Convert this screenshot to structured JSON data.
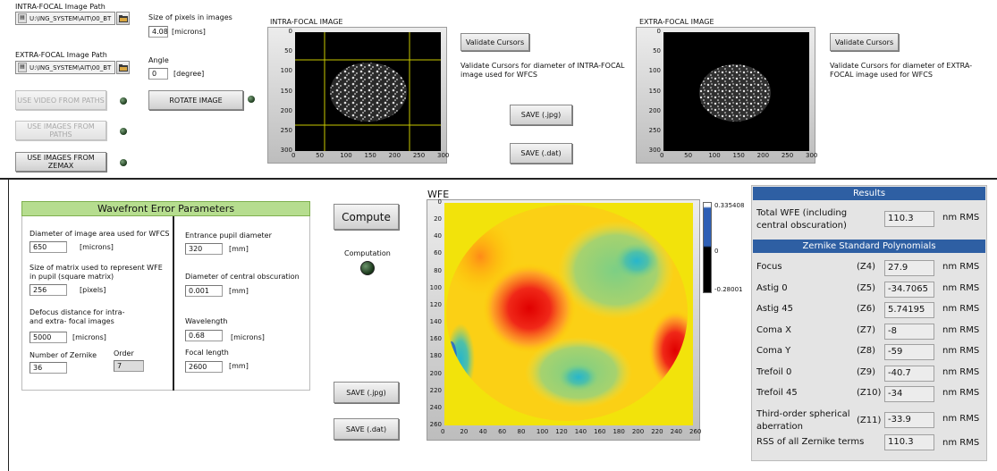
{
  "top": {
    "intra_path_label": "INTRA-FOCAL Image Path",
    "intra_path_value": "U:\\ING_SYSTEM\\AIT\\00_BT",
    "extra_path_label": "EXTRA-FOCAL Image Path",
    "extra_path_value": "U:\\ING_SYSTEM\\AIT\\00_BT",
    "pixel_size_label": "Size of pixels in images",
    "pixel_size_value": "4.08",
    "pixel_size_unit": "[microns]",
    "angle_label": "Angle",
    "angle_value": "0",
    "angle_unit": "[degree]",
    "use_video_label": "USE VIDEO FROM PATHS",
    "use_images_paths_label": "USE IMAGES FROM PATHS",
    "use_images_zemax_label": "USE IMAGES FROM ZEMAX",
    "rotate_label": "ROTATE IMAGE",
    "intra_title": "INTRA-FOCAL IMAGE",
    "extra_title": "EXTRA-FOCAL IMAGE",
    "validate_label": "Validate Cursors",
    "validate_intra_text": "Validate Cursors for diameter of INTRA-FOCAL image used for WFCS",
    "validate_extra_text": "Validate Cursors for diameter of EXTRA-FOCAL image used for WFCS",
    "save_jpg": "SAVE (.jpg)",
    "save_dat": "SAVE (.dat)",
    "x_ticks": [
      "0",
      "50",
      "100",
      "150",
      "200",
      "250",
      "300"
    ],
    "y_ticks": [
      "0",
      "50",
      "100",
      "150",
      "200",
      "250",
      "300"
    ]
  },
  "params": {
    "title": "Wavefront Error Parameters",
    "diam_label": "Diameter of image area used for WFCS",
    "diam_value": "650",
    "diam_unit": "[microns]",
    "matrix_label_1": "Size of matrix used to represent WFE",
    "matrix_label_2": "in pupil (square matrix)",
    "matrix_value": "256",
    "matrix_unit": "[pixels]",
    "defocus_label_1": "Defocus distance for intra-",
    "defocus_label_2": "and extra- focal images",
    "defocus_value": "5000",
    "defocus_unit": "[microns]",
    "nzernike_label": "Number of Zernike",
    "nzernike_value": "36",
    "order_label": "Order",
    "order_value": "7",
    "pupil_label": "Entrance pupil diameter",
    "pupil_value": "320",
    "pupil_unit": "[mm]",
    "obsc_label": "Diameter of central obscuration",
    "obsc_value": "0.001",
    "obsc_unit": "[mm]",
    "wave_label": "Wavelength",
    "wave_value": "0.68",
    "wave_unit": "[microns]",
    "focal_label": "Focal length",
    "focal_value": "2600",
    "focal_unit": "[mm]"
  },
  "compute": {
    "label": "Compute",
    "computation_label": "Computation",
    "save_jpg": "SAVE (.jpg)",
    "save_dat": "SAVE (.dat)"
  },
  "wfe": {
    "title": "WFE",
    "x_ticks": [
      "0",
      "20",
      "40",
      "60",
      "80",
      "100",
      "120",
      "140",
      "160",
      "180",
      "200",
      "220",
      "240",
      "260"
    ],
    "y_ticks": [
      "0",
      "20",
      "40",
      "60",
      "80",
      "100",
      "120",
      "140",
      "160",
      "180",
      "200",
      "220",
      "240",
      "260"
    ],
    "scale_max": "0.335408",
    "scale_mid": "0",
    "scale_min": "-0.28001"
  },
  "results": {
    "title": "Results",
    "total_label_1": "Total WFE (including",
    "total_label_2": "central obscuration)",
    "total_value": "110.3",
    "unit": "nm RMS",
    "zernike_title": "Zernike Standard Polynomials",
    "rows": [
      {
        "name": "Focus",
        "code": "(Z4)",
        "value": "27.9"
      },
      {
        "name": "Astig 0",
        "code": "(Z5)",
        "value": "-34.7065"
      },
      {
        "name": "Astig 45",
        "code": "(Z6)",
        "value": "5.74195"
      },
      {
        "name": "Coma X",
        "code": "(Z7)",
        "value": "-8"
      },
      {
        "name": "Coma Y",
        "code": "(Z8)",
        "value": "-59"
      },
      {
        "name": "Trefoil 0",
        "code": "(Z9)",
        "value": "-40.7"
      },
      {
        "name": "Trefoil 45",
        "code": "(Z10)",
        "value": "-34"
      }
    ],
    "spherical_label_1": "Third-order spherical",
    "spherical_label_2": "aberration",
    "spherical_code": "(Z11)",
    "spherical_value": "-33.9",
    "rss_label": "RSS of all Zernike terms",
    "rss_value": "110.3"
  }
}
